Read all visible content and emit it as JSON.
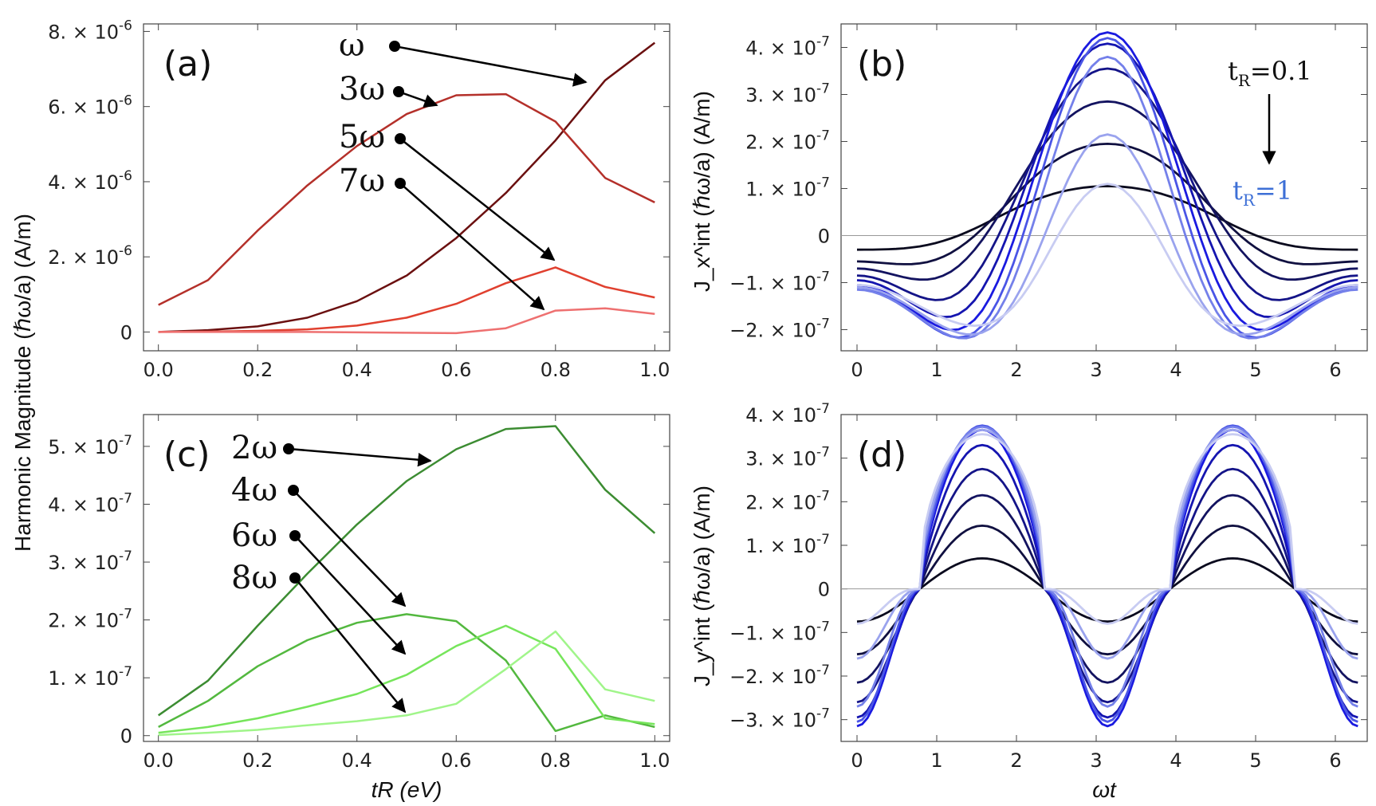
{
  "colors": {
    "omega": "#6b1010",
    "3omega": "#b4302a",
    "5omega": "#e0402f",
    "7omega": "#ee7070",
    "2omega": "#3c8c32",
    "4omega": "#53b83f",
    "6omega": "#76e55b",
    "8omega": "#a0f58a",
    "blue_dark": "#0a0a1e",
    "blue_bright": "#1a1ae0",
    "blue_light": "#c8ccf2",
    "tr_top": "#111111",
    "tr_bottom": "#3d6fd6"
  },
  "shared_ylabel": "Harmonic Magnitude (ℏω/a) (A/m)",
  "chart_data": [
    {
      "panel": "(a)",
      "type": "line",
      "xlabel": "",
      "ylim": [
        -5e-07,
        8.2e-06
      ],
      "xlim": [
        -0.03,
        1.03
      ],
      "xticks": [
        {
          "v": 0.0,
          "label": "0.0"
        },
        {
          "v": 0.2,
          "label": "0.2"
        },
        {
          "v": 0.4,
          "label": "0.4"
        },
        {
          "v": 0.6,
          "label": "0.6"
        },
        {
          "v": 0.8,
          "label": "0.8"
        },
        {
          "v": 1.0,
          "label": "1.0"
        }
      ],
      "yticks": [
        {
          "v": 0,
          "m": "0",
          "e": ""
        },
        {
          "v": 2e-06,
          "m": "2.",
          "e": "-6"
        },
        {
          "v": 4e-06,
          "m": "4.",
          "e": "-6"
        },
        {
          "v": 6e-06,
          "m": "6.",
          "e": "-6"
        },
        {
          "v": 8e-06,
          "m": "8.",
          "e": "-6"
        }
      ],
      "x": [
        0.0,
        0.1,
        0.2,
        0.3,
        0.4,
        0.5,
        0.6,
        0.7,
        0.8,
        0.9,
        1.0
      ],
      "series": [
        {
          "name": "ω",
          "color": "#6b1010",
          "values": [
            0,
            5e-08,
            1.5e-07,
            3.8e-07,
            8.2e-07,
            1.5e-06,
            2.5e-06,
            3.7e-06,
            5.1e-06,
            6.7e-06,
            7.7e-06
          ]
        },
        {
          "name": "3ω",
          "color": "#b4302a",
          "values": [
            7.2e-07,
            1.38e-06,
            2.7e-06,
            3.9e-06,
            4.95e-06,
            5.8e-06,
            6.3e-06,
            6.33e-06,
            5.6e-06,
            4.1e-06,
            3.45e-06
          ]
        },
        {
          "name": "5ω",
          "color": "#e0402f",
          "values": [
            0,
            1e-08,
            3e-08,
            7e-08,
            1.7e-07,
            3.8e-07,
            7.5e-07,
            1.3e-06,
            1.72e-06,
            1.2e-06,
            9.2e-07
          ]
        },
        {
          "name": "7ω",
          "color": "#ee7070",
          "values": [
            0,
            0,
            0,
            0,
            -1e-08,
            -2e-08,
            -3e-08,
            1e-07,
            5.7e-07,
            6.3e-07,
            4.8e-07
          ]
        }
      ],
      "labels": [
        "ω",
        "3ω",
        "5ω",
        "7ω"
      ]
    },
    {
      "panel": "(b)",
      "type": "line",
      "xlabel": "",
      "ylabel": "J_x^int (ℏω/a) (A/m)",
      "ylim": [
        -2.45e-07,
        4.5e-07
      ],
      "xlim": [
        -0.2,
        6.4
      ],
      "xticks": [
        {
          "v": 0,
          "label": "0"
        },
        {
          "v": 1,
          "label": "1"
        },
        {
          "v": 2,
          "label": "2"
        },
        {
          "v": 3,
          "label": "3"
        },
        {
          "v": 4,
          "label": "4"
        },
        {
          "v": 5,
          "label": "5"
        },
        {
          "v": 6,
          "label": "6"
        }
      ],
      "yticks": [
        {
          "v": -2e-07,
          "m": "−2.",
          "e": "-7"
        },
        {
          "v": -1e-07,
          "m": "−1.",
          "e": "-7"
        },
        {
          "v": 0,
          "m": "0",
          "e": ""
        },
        {
          "v": 1e-07,
          "m": "1.",
          "e": "-7"
        },
        {
          "v": 2e-07,
          "m": "2.",
          "e": "-7"
        },
        {
          "v": 3e-07,
          "m": "3.",
          "e": "-7"
        },
        {
          "v": 4e-07,
          "m": "4.",
          "e": "-7"
        }
      ],
      "curve_model": "peak at ωt=π, symmetric; value at π given per tR",
      "series": [
        {
          "name": "tR=0.1",
          "color": "#0a0a1e",
          "peak": 1.05e-07,
          "trough": -5.5e-08,
          "edge": -3e-08,
          "sharp": 0.0
        },
        {
          "name": "tR=0.2",
          "color": "#101040",
          "peak": 1.95e-07,
          "trough": -1e-07,
          "edge": -5.5e-08,
          "sharp": 0.05
        },
        {
          "name": "tR=0.3",
          "color": "#131360",
          "peak": 2.85e-07,
          "trough": -1.4e-07,
          "edge": -7e-08,
          "sharp": 0.1
        },
        {
          "name": "tR=0.4",
          "color": "#141488",
          "peak": 3.55e-07,
          "trough": -1.75e-07,
          "edge": -8.5e-08,
          "sharp": 0.18
        },
        {
          "name": "tR=0.5",
          "color": "#1515b0",
          "peak": 4.08e-07,
          "trough": -2e-07,
          "edge": -9.5e-08,
          "sharp": 0.26
        },
        {
          "name": "tR=0.6",
          "color": "#1a1ae0",
          "peak": 4.32e-07,
          "trough": -2.15e-07,
          "edge": -1.05e-07,
          "sharp": 0.35
        },
        {
          "name": "tR=0.7",
          "color": "#4a55e6",
          "peak": 4.2e-07,
          "trough": -2.2e-07,
          "edge": -1.1e-07,
          "sharp": 0.45
        },
        {
          "name": "tR=0.8",
          "color": "#7480ea",
          "peak": 3.8e-07,
          "trough": -2.15e-07,
          "edge": -1.15e-07,
          "sharp": 0.55
        },
        {
          "name": "tR=0.9",
          "color": "#9aa3ee",
          "peak": 2.15e-07,
          "trough": -2e-07,
          "edge": -1.1e-07,
          "sharp": 0.7
        },
        {
          "name": "tR=1.0",
          "color": "#c8ccf2",
          "peak": 1.1e-07,
          "trough": -1.8e-07,
          "edge": -1.05e-07,
          "sharp": 0.85
        }
      ],
      "legend_top": "tR=0.1",
      "legend_bottom": "tR=1"
    },
    {
      "panel": "(c)",
      "type": "line",
      "xlabel": "tR (eV)",
      "ylim": [
        -1e-08,
        5.55e-07
      ],
      "xlim": [
        -0.03,
        1.03
      ],
      "xticks": [
        {
          "v": 0.0,
          "label": "0.0"
        },
        {
          "v": 0.2,
          "label": "0.2"
        },
        {
          "v": 0.4,
          "label": "0.4"
        },
        {
          "v": 0.6,
          "label": "0.6"
        },
        {
          "v": 0.8,
          "label": "0.8"
        },
        {
          "v": 1.0,
          "label": "1.0"
        }
      ],
      "yticks": [
        {
          "v": 0,
          "m": "0",
          "e": ""
        },
        {
          "v": 1e-07,
          "m": "1.",
          "e": "-7"
        },
        {
          "v": 2e-07,
          "m": "2.",
          "e": "-7"
        },
        {
          "v": 3e-07,
          "m": "3.",
          "e": "-7"
        },
        {
          "v": 4e-07,
          "m": "4.",
          "e": "-7"
        },
        {
          "v": 5e-07,
          "m": "5.",
          "e": "-7"
        }
      ],
      "x": [
        0.0,
        0.1,
        0.2,
        0.3,
        0.4,
        0.5,
        0.6,
        0.7,
        0.8,
        0.9,
        1.0
      ],
      "series": [
        {
          "name": "2ω",
          "color": "#3c8c32",
          "values": [
            3.5e-08,
            9.5e-08,
            1.9e-07,
            2.8e-07,
            3.65e-07,
            4.4e-07,
            4.95e-07,
            5.3e-07,
            5.35e-07,
            4.25e-07,
            3.5e-07
          ]
        },
        {
          "name": "4ω",
          "color": "#53b83f",
          "values": [
            1.5e-08,
            6e-08,
            1.2e-07,
            1.65e-07,
            1.95e-07,
            2.1e-07,
            1.98e-07,
            1.3e-07,
            8e-09,
            3.5e-08,
            1.5e-08
          ]
        },
        {
          "name": "6ω",
          "color": "#76e55b",
          "values": [
            5e-09,
            1.5e-08,
            3e-08,
            5e-08,
            7.2e-08,
            1.05e-07,
            1.55e-07,
            1.9e-07,
            1.5e-07,
            3e-08,
            2e-08
          ]
        },
        {
          "name": "8ω",
          "color": "#a0f58a",
          "values": [
            1e-09,
            5e-09,
            1e-08,
            1.8e-08,
            2.5e-08,
            3.5e-08,
            5.5e-08,
            1.15e-07,
            1.8e-07,
            8e-08,
            6e-08
          ]
        }
      ],
      "labels": [
        "2ω",
        "4ω",
        "6ω",
        "8ω"
      ]
    },
    {
      "panel": "(d)",
      "type": "line",
      "xlabel": "ωt",
      "ylabel": "J_y^int (ℏω/a) (A/m)",
      "ylim": [
        -3.5e-07,
        4e-07
      ],
      "xlim": [
        -0.2,
        6.4
      ],
      "xticks": [
        {
          "v": 0,
          "label": "0"
        },
        {
          "v": 1,
          "label": "1"
        },
        {
          "v": 2,
          "label": "2"
        },
        {
          "v": 3,
          "label": "3"
        },
        {
          "v": 4,
          "label": "4"
        },
        {
          "v": 5,
          "label": "5"
        },
        {
          "v": 6,
          "label": "6"
        }
      ],
      "yticks": [
        {
          "v": -3e-07,
          "m": "−3.",
          "e": "-7"
        },
        {
          "v": -2e-07,
          "m": "−2.",
          "e": "-7"
        },
        {
          "v": -1e-07,
          "m": "−1.",
          "e": "-7"
        },
        {
          "v": 0,
          "m": "0",
          "e": ""
        },
        {
          "v": 1e-07,
          "m": "1.",
          "e": "-7"
        },
        {
          "v": 2e-07,
          "m": "2.",
          "e": "-7"
        },
        {
          "v": 3e-07,
          "m": "3.",
          "e": "-7"
        },
        {
          "v": 4e-07,
          "m": "4.",
          "e": "-7"
        }
      ],
      "curve_model": "periodic with period π, peaks at π/2 and 3π/2",
      "series": [
        {
          "name": "tR=0.1",
          "color": "#0a0a1e",
          "amp": 7e-08,
          "low": -7.5e-08,
          "sharp": 0.0
        },
        {
          "name": "tR=0.2",
          "color": "#101040",
          "amp": 1.45e-07,
          "low": -1.5e-07,
          "sharp": 0.05
        },
        {
          "name": "tR=0.3",
          "color": "#131360",
          "amp": 2.15e-07,
          "low": -2.15e-07,
          "sharp": 0.1
        },
        {
          "name": "tR=0.4",
          "color": "#141488",
          "amp": 2.75e-07,
          "low": -2.6e-07,
          "sharp": 0.15
        },
        {
          "name": "tR=0.5",
          "color": "#1515b0",
          "amp": 3.3e-07,
          "low": -2.95e-07,
          "sharp": 0.2
        },
        {
          "name": "tR=0.6",
          "color": "#1a1ae0",
          "amp": 3.65e-07,
          "low": -3.15e-07,
          "sharp": 0.25
        },
        {
          "name": "tR=0.7",
          "color": "#4a55e6",
          "amp": 3.75e-07,
          "low": -3.05e-07,
          "sharp": 0.3
        },
        {
          "name": "tR=0.8",
          "color": "#7480ea",
          "amp": 3.72e-07,
          "low": -2.7e-07,
          "sharp": 0.38
        },
        {
          "name": "tR=0.9",
          "color": "#9aa3ee",
          "amp": 3.65e-07,
          "low": -1.6e-07,
          "sharp": 0.45
        },
        {
          "name": "tR=1.0",
          "color": "#c8ccf2",
          "amp": 3.55e-07,
          "low": -8e-08,
          "sharp": 0.55
        }
      ]
    }
  ],
  "mantissa_suffix": "×",
  "exp_base": "10"
}
